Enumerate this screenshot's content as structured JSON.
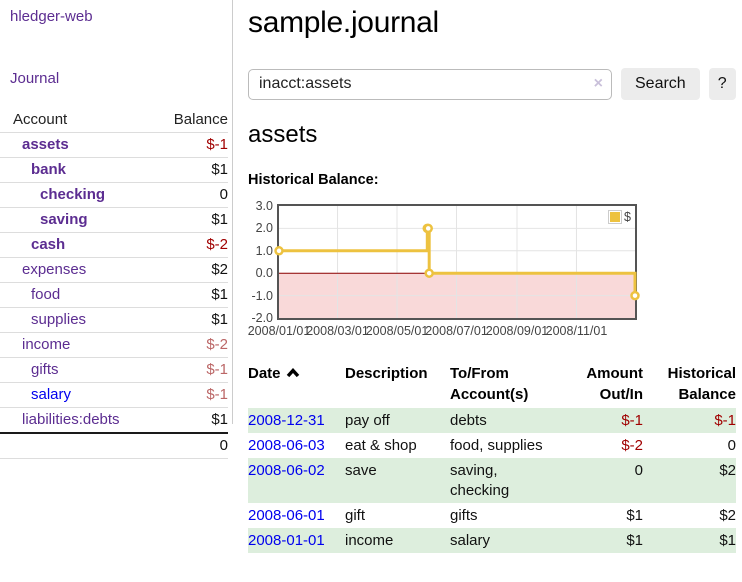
{
  "app": {
    "brand": "hledger-web",
    "nav": {
      "journal": "Journal"
    }
  },
  "sidebar": {
    "header": {
      "account": "Account",
      "balance": "Balance"
    },
    "rows": [
      {
        "name": "assets",
        "balance": "$-1"
      },
      {
        "name": "bank",
        "balance": "$1"
      },
      {
        "name": "checking",
        "balance": "0"
      },
      {
        "name": "saving",
        "balance": "$1"
      },
      {
        "name": "cash",
        "balance": "$-2"
      },
      {
        "name": "expenses",
        "balance": "$2"
      },
      {
        "name": "food",
        "balance": "$1"
      },
      {
        "name": "supplies",
        "balance": "$1"
      },
      {
        "name": "income",
        "balance": "$-2"
      },
      {
        "name": "gifts",
        "balance": "$-1"
      },
      {
        "name": "salary",
        "balance": "$-1"
      },
      {
        "name": "liabilities:debts",
        "balance": "$1"
      }
    ],
    "total": "0"
  },
  "header": {
    "title": "sample.journal"
  },
  "search": {
    "value": "inacct:assets",
    "clear_icon": "×",
    "button_label": "Search",
    "help_label": "?"
  },
  "account_page": {
    "heading": "assets",
    "chart_title": "Historical Balance:"
  },
  "chart_data": {
    "type": "line",
    "step": true,
    "x": [
      "2008-01-01",
      "2008-06-01",
      "2008-06-02",
      "2008-06-03",
      "2008-12-31"
    ],
    "series": [
      {
        "name": "$",
        "values": [
          1,
          2,
          2,
          0,
          -1
        ]
      }
    ],
    "xlim": [
      "2008-01-01",
      "2008-12-31"
    ],
    "ylim": [
      -2,
      3
    ],
    "x_tick_labels": [
      "2008/01/01",
      "2008/03/01",
      "2008/05/01",
      "2008/07/01",
      "2008/09/01",
      "2008/11/01"
    ],
    "y_tick_labels": [
      "3.0",
      "2.0",
      "1.0",
      "0.0",
      "-1.0",
      "-2.0"
    ],
    "legend_position": "top-right",
    "grid": true,
    "colors": {
      "line": "#edc240",
      "marker_fill": "#ffffff",
      "negative_region": "#f9d9d9",
      "zero_line": "#8b0000",
      "grid": "#e4e4e4",
      "border": "#545454"
    }
  },
  "register": {
    "columns": [
      "Date",
      "Description",
      "To/From\nAccount(s)",
      "Amount\nOut/In",
      "Historical\nBalance"
    ],
    "sort": "ascending",
    "rows": [
      {
        "date": "2008-12-31",
        "description": "pay off",
        "accounts": "debts",
        "amount": "$-1",
        "balance": "$-1"
      },
      {
        "date": "2008-06-03",
        "description": "eat & shop",
        "accounts": "food, supplies",
        "amount": "$-2",
        "balance": "0"
      },
      {
        "date": "2008-06-02",
        "description": "save",
        "accounts": "saving,\nchecking",
        "amount": "0",
        "balance": "$2"
      },
      {
        "date": "2008-06-01",
        "description": "gift",
        "accounts": "gifts",
        "amount": "$1",
        "balance": "$2"
      },
      {
        "date": "2008-01-01",
        "description": "income",
        "accounts": "salary",
        "amount": "$1",
        "balance": "$1"
      }
    ]
  },
  "colors": {
    "link_purple": "#5c2d91",
    "link_blue": "#0000ee",
    "negative_amount": "#a00000",
    "soft_negative_amount": "#bb6666",
    "row_stripe_green": "#ddeedd"
  }
}
